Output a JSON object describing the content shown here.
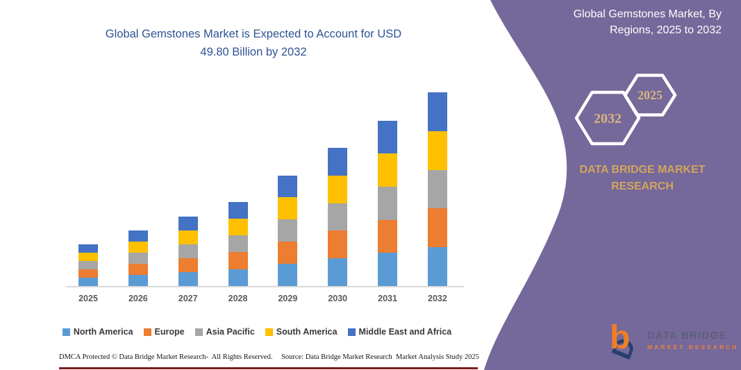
{
  "page": {
    "background": "#ffffff",
    "panel_color": "#75689a"
  },
  "chart": {
    "title_lines": [
      "Global Gemstones Market is Expected to Account for USD",
      "49.80 Billion by 2032"
    ],
    "title_color": "#2e5395"
  },
  "chart_data": {
    "type": "bar",
    "stacked": true,
    "title": "Global Gemstones Market is Expected to Account for USD 49.80 Billion by 2032",
    "categories": [
      "2025",
      "2026",
      "2027",
      "2028",
      "2029",
      "2030",
      "2031",
      "2032"
    ],
    "series": [
      {
        "name": "North America",
        "color": "#5b9bd5",
        "values": [
          2.14,
          2.86,
          3.58,
          4.34,
          5.7,
          7.1,
          8.52,
          9.96
        ]
      },
      {
        "name": "Europe",
        "color": "#ed7d31",
        "values": [
          2.14,
          2.86,
          3.58,
          4.34,
          5.7,
          7.1,
          8.52,
          9.96
        ]
      },
      {
        "name": "Asia Pacific",
        "color": "#a6a6a6",
        "values": [
          2.14,
          2.86,
          3.58,
          4.34,
          5.7,
          7.1,
          8.52,
          9.96
        ]
      },
      {
        "name": "South America",
        "color": "#ffc000",
        "values": [
          2.14,
          2.86,
          3.58,
          4.34,
          5.7,
          7.1,
          8.52,
          9.96
        ]
      },
      {
        "name": "Middle East and Africa",
        "color": "#4472c4",
        "values": [
          2.14,
          2.86,
          3.58,
          4.34,
          5.7,
          7.1,
          8.52,
          9.96
        ]
      }
    ],
    "totals_usd_billion": [
      10.7,
      14.3,
      17.9,
      21.7,
      28.5,
      35.5,
      42.6,
      49.8
    ],
    "unit": "USD Billion",
    "ylim": [
      0,
      50
    ],
    "grid": false,
    "y_axis_visible": false,
    "legend_position": "bottom"
  },
  "footer": {
    "left": "DMCA Protected © Data Bridge Market Research-  All Rights Reserved.",
    "right": "Source: Data Bridge Market Research  Market Analysis Study 2025"
  },
  "side_panel": {
    "title": "Global Gemstones Market, By Regions, 2025 to 2032",
    "hexagons": [
      {
        "label": "2032"
      },
      {
        "label": "2025"
      }
    ],
    "brand_text": "DATA BRIDGE MARKET RESEARCH",
    "accent_color": "#d2a55e",
    "logo": {
      "line1": "DATA BRIDGE",
      "line2": "MARKET RESEARCH"
    }
  }
}
